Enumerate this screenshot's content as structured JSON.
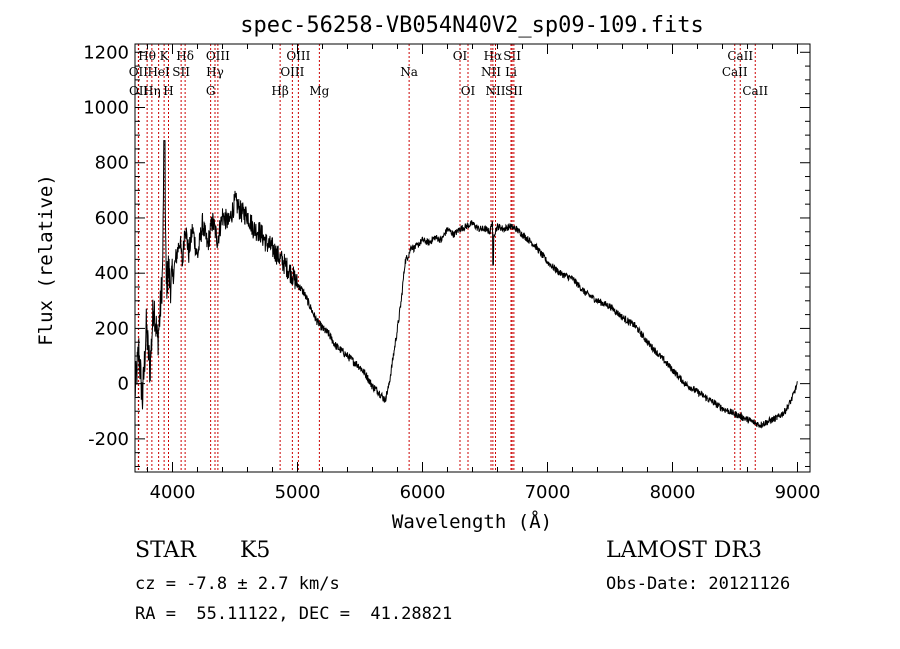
{
  "chart_data": {
    "type": "line",
    "title": "spec-56258-VB054N40V2_sp09-109.fits",
    "xlabel": "Wavelength (Å)",
    "ylabel": "Flux (relative)",
    "xlim": [
      3700,
      9100
    ],
    "ylim": [
      -320,
      1230
    ],
    "xticks": [
      4000,
      5000,
      6000,
      7000,
      8000,
      9000
    ],
    "yticks": [
      -200,
      0,
      200,
      400,
      600,
      800,
      1000,
      1200
    ],
    "series": [
      {
        "name": "flux",
        "x": [
          3700,
          3730,
          3760,
          3790,
          3820,
          3850,
          3880,
          3900,
          3920,
          3935,
          3950,
          3968,
          3980,
          4000,
          4030,
          4060,
          4080,
          4100,
          4130,
          4160,
          4200,
          4240,
          4280,
          4320,
          4360,
          4400,
          4450,
          4500,
          4550,
          4600,
          4650,
          4700,
          4750,
          4800,
          4850,
          4900,
          4950,
          5000,
          5050,
          5100,
          5150,
          5200,
          5250,
          5300,
          5350,
          5400,
          5450,
          5500,
          5550,
          5600,
          5650,
          5700,
          5730,
          5760,
          5800,
          5830,
          5860,
          5880,
          5900,
          5910,
          5930,
          5960,
          6000,
          6050,
          6100,
          6150,
          6200,
          6250,
          6300,
          6350,
          6400,
          6450,
          6500,
          6540,
          6560,
          6570,
          6600,
          6650,
          6700,
          6750,
          6800,
          6900,
          7000,
          7100,
          7200,
          7300,
          7400,
          7500,
          7600,
          7700,
          7800,
          7900,
          8000,
          8100,
          8200,
          8300,
          8400,
          8450,
          8500,
          8550,
          8600,
          8650,
          8700,
          8750,
          8800,
          8850,
          8900,
          8950,
          9000
        ],
        "y": [
          -30,
          120,
          -60,
          200,
          50,
          300,
          150,
          250,
          400,
          880,
          350,
          420,
          360,
          380,
          460,
          520,
          430,
          580,
          470,
          560,
          460,
          580,
          500,
          590,
          520,
          610,
          580,
          660,
          620,
          610,
          560,
          550,
          510,
          490,
          460,
          430,
          400,
          360,
          330,
          280,
          230,
          200,
          180,
          140,
          120,
          100,
          80,
          60,
          30,
          -10,
          -30,
          -60,
          -10,
          80,
          200,
          300,
          440,
          460,
          480,
          500,
          490,
          500,
          520,
          510,
          530,
          520,
          560,
          540,
          560,
          570,
          580,
          560,
          560,
          550,
          590,
          540,
          570,
          560,
          570,
          560,
          540,
          500,
          440,
          400,
          380,
          330,
          300,
          280,
          240,
          210,
          150,
          100,
          50,
          0,
          -30,
          -60,
          -90,
          -100,
          -110,
          -120,
          -130,
          -140,
          -150,
          -140,
          -130,
          -120,
          -100,
          -60,
          0
        ]
      }
    ],
    "spectral_lines": [
      {
        "label": "Hθ",
        "x": 3797,
        "row": 0
      },
      {
        "label": "K",
        "x": 3933,
        "row": 0
      },
      {
        "label": "Hδ",
        "x": 4101,
        "row": 0
      },
      {
        "label": "OII",
        "x": 3727,
        "row": 1
      },
      {
        "label": "HeI",
        "x": 3889,
        "row": 1
      },
      {
        "label": "SII",
        "x": 4069,
        "row": 1
      },
      {
        "label": "OIII",
        "x": 4363,
        "row": 0
      },
      {
        "label": "Hγ",
        "x": 4340,
        "row": 1
      },
      {
        "label": "OII",
        "x": 3729,
        "row": 2
      },
      {
        "label": "Hη",
        "x": 3835,
        "row": 2
      },
      {
        "label": "H",
        "x": 3968,
        "row": 2
      },
      {
        "label": "G",
        "x": 4305,
        "row": 2
      },
      {
        "label": "OIII",
        "x": 5007,
        "row": 0
      },
      {
        "label": "OIII",
        "x": 4959,
        "row": 1
      },
      {
        "label": "Hβ",
        "x": 4861,
        "row": 2
      },
      {
        "label": "Mg",
        "x": 5175,
        "row": 2
      },
      {
        "label": "Na",
        "x": 5893,
        "row": 1
      },
      {
        "label": "OI",
        "x": 6300,
        "row": 0
      },
      {
        "label": "OI",
        "x": 6364,
        "row": 2
      },
      {
        "label": "Hα",
        "x": 6563,
        "row": 0
      },
      {
        "label": "SII",
        "x": 6717,
        "row": 0
      },
      {
        "label": "NII",
        "x": 6548,
        "row": 1
      },
      {
        "label": "Li",
        "x": 6708,
        "row": 1
      },
      {
        "label": "NII",
        "x": 6584,
        "row": 2
      },
      {
        "label": "SII",
        "x": 6731,
        "row": 2
      },
      {
        "label": "CaII",
        "x": 8542,
        "row": 0
      },
      {
        "label": "CaII",
        "x": 8498,
        "row": 1
      },
      {
        "label": "CaII",
        "x": 8662,
        "row": 2
      }
    ]
  },
  "info": {
    "class_label": "STAR",
    "subclass": "K5",
    "survey": "LAMOST DR3",
    "redshift": "cz = -7.8 ± 2.7 km/s",
    "obs_date": "Obs-Date: 20121126",
    "coords": "RA =  55.11122, DEC =  41.28821"
  },
  "colors": {
    "line_marker": "#cc0000",
    "spectrum": "#000000",
    "axis": "#000000"
  }
}
